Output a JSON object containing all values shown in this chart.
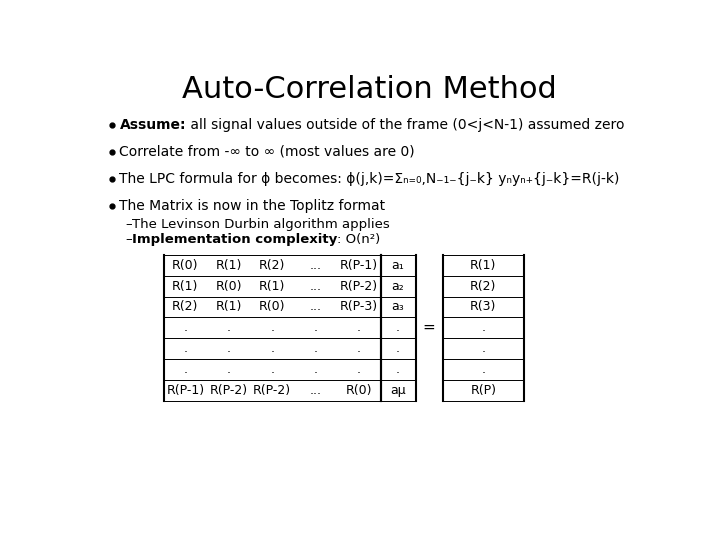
{
  "title": "Auto-Correlation Method",
  "title_fontsize": 22,
  "bg_color": "#ffffff",
  "bullet_color": "#000000",
  "bullet1_bold": "Assume:",
  "bullet1_normal": " all signal values outside of the frame (0<j<N-1) assumed zero",
  "bullet2": "Correlate from -∞ to ∞ (most values are 0)",
  "bullet3": "The LPC formula for ϕ becomes: ϕ(j,k)=Σₙ₌₀,N₋₁₋{j₋k} yₙyₙ₊{j₋k}=R(j-k)",
  "bullet4": "The Matrix is now in the Toplitz format",
  "sub1": "The Levinson Durbin algorithm applies",
  "sub2_bold": "Implementation complexity",
  "sub2_normal": ": O(n²)",
  "matrix_rows": [
    [
      "R(0)",
      "R(1)",
      "R(2)",
      "...",
      "R(P-1)",
      "a₁",
      "R(1)"
    ],
    [
      "R(1)",
      "R(0)",
      "R(1)",
      "...",
      "R(P-2)",
      "a₂",
      "R(2)"
    ],
    [
      "R(2)",
      "R(1)",
      "R(0)",
      "...",
      "R(P-3)",
      "a₃",
      "R(3)"
    ],
    [
      ".",
      ".",
      ".",
      ".",
      ".",
      ".",
      "."
    ],
    [
      ".",
      ".",
      ".",
      ".",
      ".",
      ".",
      "."
    ],
    [
      ".",
      ".",
      ".",
      ".",
      ".",
      ".",
      "."
    ],
    [
      "R(P-1)",
      "R(P-2)",
      "R(P-2)",
      "...",
      "R(0)",
      "aμ",
      "R(P)"
    ]
  ],
  "equals_row": 3,
  "bullet_fontsize": 10,
  "sub_fontsize": 9.5,
  "table_fontsize": 9
}
